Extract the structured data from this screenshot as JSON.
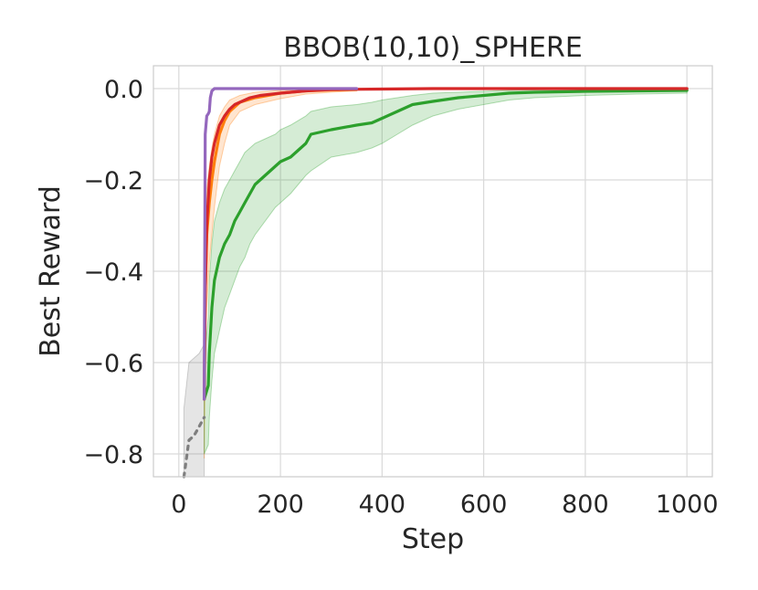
{
  "chart_data": {
    "type": "line",
    "title": "BBOB(10,10)_SPHERE",
    "xlabel": "Step",
    "ylabel": "Best Reward",
    "xlim": [
      -50,
      1050
    ],
    "ylim": [
      -0.85,
      0.05
    ],
    "xticks": [
      0,
      200,
      400,
      600,
      800,
      1000
    ],
    "xtick_labels": [
      "0",
      "200",
      "400",
      "600",
      "800",
      "1000"
    ],
    "yticks": [
      0.0,
      -0.2,
      -0.4,
      -0.6,
      -0.8
    ],
    "ytick_labels": [
      "0.0",
      "−0.2",
      "−0.4",
      "−0.6",
      "−0.8"
    ],
    "grid": true,
    "series": [
      {
        "color": "#7f7f7f",
        "style": "dotted",
        "x": [
          10,
          20,
          30,
          40,
          50
        ],
        "y": [
          -0.85,
          -0.77,
          -0.76,
          -0.74,
          -0.72
        ],
        "band_upper": [
          -0.7,
          -0.6,
          -0.59,
          -0.58,
          -0.56
        ],
        "band_lower": [
          -0.85,
          -0.85,
          -0.85,
          -0.85,
          -0.85
        ]
      },
      {
        "color": "#ff7f0e",
        "style": "solid",
        "x": [
          50,
          52,
          55,
          60,
          65,
          70,
          80,
          90,
          100,
          120,
          150,
          200,
          250,
          300,
          350
        ],
        "y": [
          -0.68,
          -0.45,
          -0.32,
          -0.25,
          -0.2,
          -0.16,
          -0.1,
          -0.07,
          -0.05,
          -0.03,
          -0.02,
          -0.01,
          -0.005,
          -0.003,
          -0.002
        ],
        "band_upper": [
          -0.55,
          -0.32,
          -0.22,
          -0.17,
          -0.13,
          -0.1,
          -0.06,
          -0.04,
          -0.025,
          -0.015,
          -0.008,
          -0.004,
          -0.002,
          -0.001,
          0.0
        ],
        "band_lower": [
          -0.81,
          -0.62,
          -0.48,
          -0.38,
          -0.32,
          -0.26,
          -0.17,
          -0.12,
          -0.08,
          -0.05,
          -0.035,
          -0.022,
          -0.012,
          -0.008,
          -0.005
        ]
      },
      {
        "color": "#2ca02c",
        "style": "solid",
        "x": [
          50,
          58,
          60,
          65,
          70,
          80,
          90,
          100,
          110,
          120,
          130,
          140,
          150,
          170,
          190,
          200,
          220,
          250,
          260,
          300,
          350,
          380,
          400,
          430,
          460,
          500,
          550,
          600,
          650,
          700,
          800,
          900,
          1000
        ],
        "y": [
          -0.68,
          -0.65,
          -0.58,
          -0.48,
          -0.42,
          -0.37,
          -0.34,
          -0.32,
          -0.29,
          -0.27,
          -0.25,
          -0.23,
          -0.21,
          -0.19,
          -0.17,
          -0.16,
          -0.15,
          -0.12,
          -0.1,
          -0.09,
          -0.08,
          -0.075,
          -0.065,
          -0.05,
          -0.035,
          -0.028,
          -0.02,
          -0.015,
          -0.01,
          -0.008,
          -0.006,
          -0.005,
          -0.004
        ],
        "band_upper": [
          -0.6,
          -0.5,
          -0.42,
          -0.34,
          -0.29,
          -0.25,
          -0.22,
          -0.2,
          -0.18,
          -0.16,
          -0.14,
          -0.13,
          -0.12,
          -0.11,
          -0.1,
          -0.09,
          -0.08,
          -0.06,
          -0.05,
          -0.04,
          -0.035,
          -0.03,
          -0.025,
          -0.02,
          -0.015,
          -0.01,
          -0.008,
          -0.006,
          -0.004,
          -0.003,
          -0.002,
          -0.001,
          0.0
        ],
        "band_lower": [
          -0.8,
          -0.78,
          -0.72,
          -0.64,
          -0.58,
          -0.53,
          -0.48,
          -0.45,
          -0.42,
          -0.39,
          -0.37,
          -0.34,
          -0.32,
          -0.29,
          -0.26,
          -0.25,
          -0.23,
          -0.19,
          -0.18,
          -0.15,
          -0.14,
          -0.13,
          -0.12,
          -0.1,
          -0.08,
          -0.06,
          -0.045,
          -0.035,
          -0.025,
          -0.02,
          -0.015,
          -0.012,
          -0.01
        ]
      },
      {
        "color": "#d62728",
        "style": "solid",
        "x": [
          50,
          52,
          55,
          58,
          60,
          65,
          70,
          75,
          80,
          90,
          100,
          110,
          120,
          140,
          160,
          200,
          250,
          300,
          400,
          500,
          600,
          800,
          1000
        ],
        "y": [
          -0.68,
          -0.45,
          -0.3,
          -0.24,
          -0.2,
          -0.15,
          -0.12,
          -0.1,
          -0.08,
          -0.06,
          -0.045,
          -0.035,
          -0.03,
          -0.02,
          -0.015,
          -0.01,
          -0.005,
          -0.002,
          -0.001,
          0.0,
          0.0,
          0.0,
          0.0
        ]
      },
      {
        "color": "#9467bd",
        "style": "solid",
        "x": [
          50,
          52,
          55,
          58,
          60,
          62,
          65,
          70,
          80,
          100,
          150,
          200,
          300,
          350
        ],
        "y": [
          -0.68,
          -0.1,
          -0.06,
          -0.055,
          -0.05,
          -0.02,
          -0.005,
          0.0,
          0.0,
          0.0,
          0.0,
          0.0,
          0.0,
          0.0
        ]
      }
    ]
  }
}
